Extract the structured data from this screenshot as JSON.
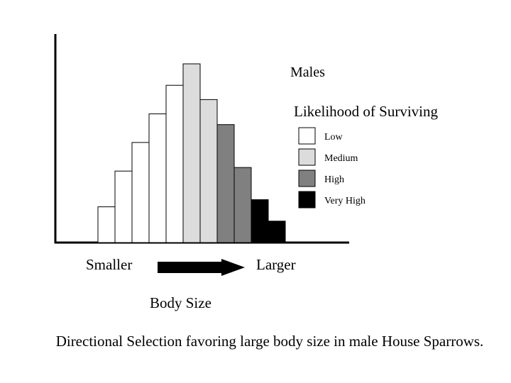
{
  "chart_data": {
    "type": "bar",
    "title": "Males",
    "xlabel": "Body Size",
    "ylabel": "",
    "x_direction_labels": {
      "left": "Smaller",
      "right": "Larger"
    },
    "caption": "Directional Selection favoring large body size in male House Sparrows.",
    "legend": {
      "title": "Likelihood of Surviving",
      "placement": "right",
      "entries": [
        {
          "label": "Low",
          "color": "#ffffff"
        },
        {
          "label": "Medium",
          "color": "#dcdcdc"
        },
        {
          "label": "High",
          "color": "#808080"
        },
        {
          "label": "Very High",
          "color": "#000000"
        }
      ]
    },
    "bars": [
      {
        "value": 1.0,
        "survival": "Low"
      },
      {
        "value": 2.0,
        "survival": "Low"
      },
      {
        "value": 2.8,
        "survival": "Low"
      },
      {
        "value": 3.6,
        "survival": "Low"
      },
      {
        "value": 4.4,
        "survival": "Low"
      },
      {
        "value": 5.0,
        "survival": "Medium"
      },
      {
        "value": 4.0,
        "survival": "Medium"
      },
      {
        "value": 3.3,
        "survival": "High"
      },
      {
        "value": 2.1,
        "survival": "High"
      },
      {
        "value": 1.2,
        "survival": "Very High"
      },
      {
        "value": 0.6,
        "survival": "Very High"
      }
    ],
    "ylim": [
      0,
      5.0
    ],
    "grid": false
  }
}
